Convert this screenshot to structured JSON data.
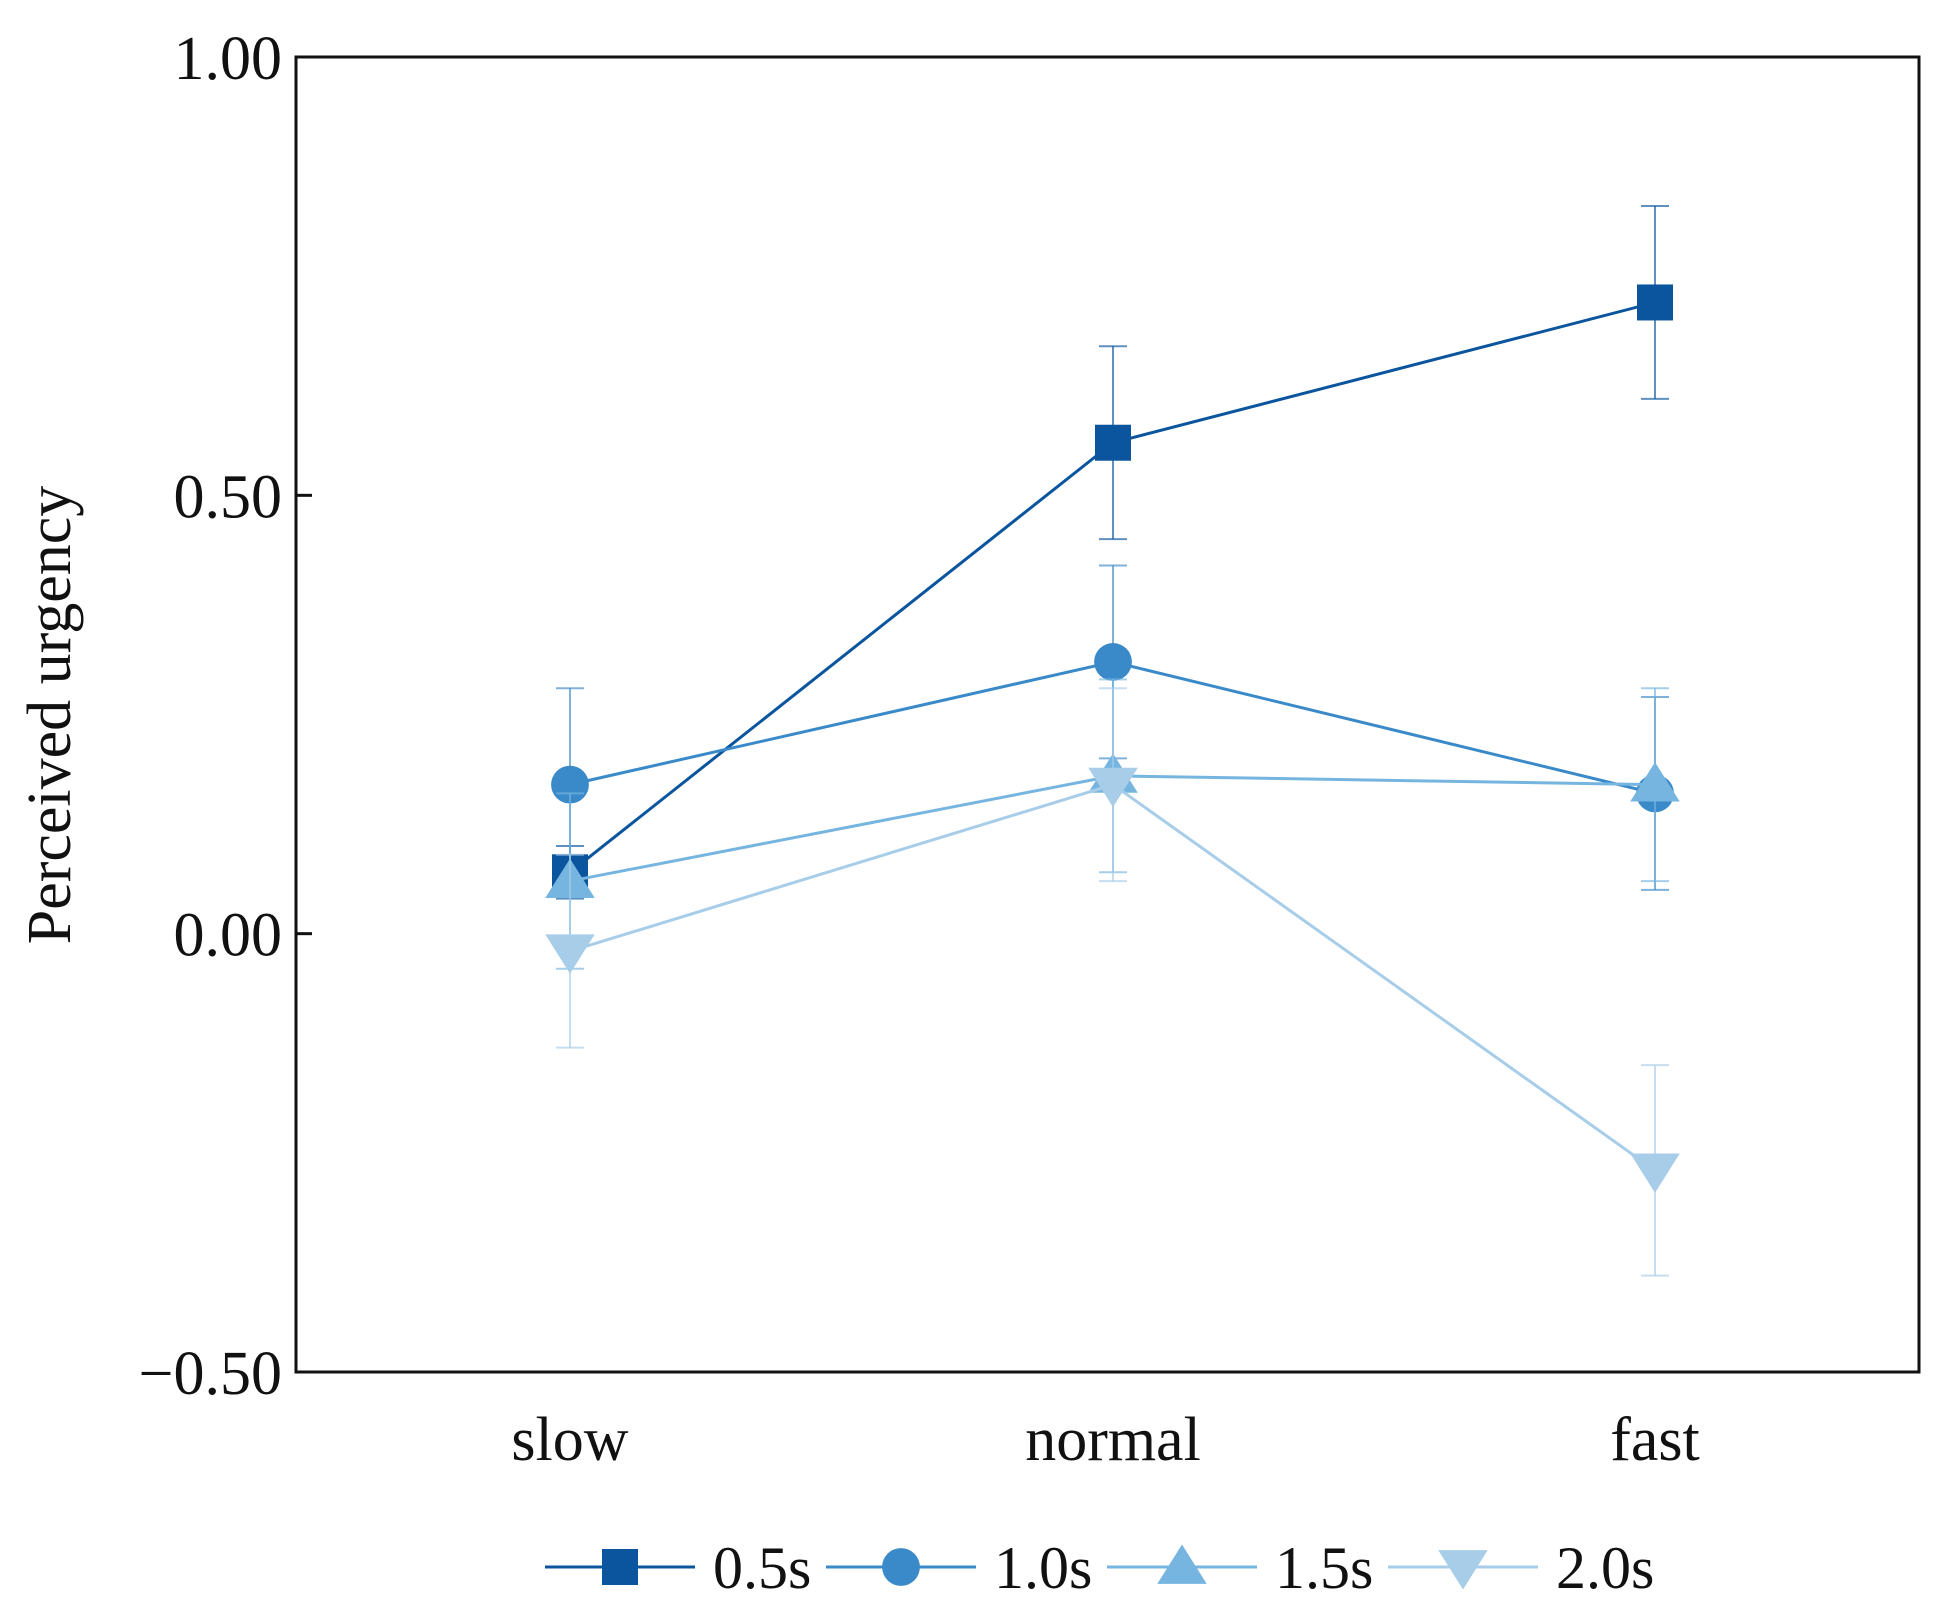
{
  "chart_data": {
    "type": "line",
    "title": "",
    "xlabel": "",
    "ylabel": "Perceived urgency",
    "categories": [
      "slow",
      "normal",
      "fast"
    ],
    "ylim": [
      -0.5,
      1.0
    ],
    "yticks": [
      -0.5,
      0.0,
      0.5,
      1.0
    ],
    "ytick_labels": [
      "−0.50",
      "0.00",
      "0.50",
      "1.00"
    ],
    "legend_position": "bottom",
    "grid": false,
    "series": [
      {
        "name": "0.5s",
        "marker": "square",
        "color": "#0b559f",
        "values": [
          0.07,
          0.56,
          0.72
        ],
        "err_low": [
          0.04,
          0.45,
          0.61
        ],
        "err_high": [
          0.1,
          0.67,
          0.83
        ]
      },
      {
        "name": "1.0s",
        "marker": "circle",
        "color": "#3a8ac9",
        "values": [
          0.17,
          0.31,
          0.16
        ],
        "err_low": [
          0.06,
          0.2,
          0.05
        ],
        "err_high": [
          0.28,
          0.42,
          0.27
        ]
      },
      {
        "name": "1.5s",
        "marker": "triangle-up",
        "color": "#76b5e0",
        "values": [
          0.06,
          0.18,
          0.17
        ],
        "err_low": [
          -0.04,
          0.07,
          0.06
        ],
        "err_high": [
          0.16,
          0.29,
          0.28
        ]
      },
      {
        "name": "2.0s",
        "marker": "triangle-down",
        "color": "#a8cde9",
        "values": [
          -0.02,
          0.17,
          -0.27
        ],
        "err_low": [
          -0.13,
          0.06,
          -0.39
        ],
        "err_high": [
          0.09,
          0.28,
          -0.15
        ]
      }
    ]
  }
}
